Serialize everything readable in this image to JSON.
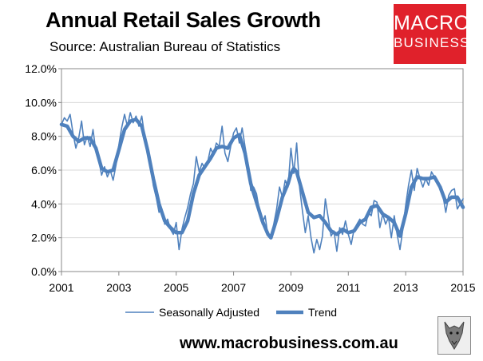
{
  "header": {
    "title": "Annual Retail Sales Growth",
    "source": "Source: Australian Bureau of Statistics"
  },
  "logo": {
    "line1": "MACRO",
    "line2": "BUSINESS",
    "color": "#e0212b"
  },
  "footer": {
    "website": "www.macrobusiness.com.au"
  },
  "chart_data": {
    "type": "line",
    "title": "Annual Retail Sales Growth",
    "xlabel": "",
    "ylabel": "",
    "xlim": [
      2001,
      2015
    ],
    "ylim": [
      0,
      12
    ],
    "x_ticks": [
      "2001",
      "2003",
      "2005",
      "2007",
      "2009",
      "2011",
      "2013",
      "2015"
    ],
    "y_ticks": [
      "0.0%",
      "2.0%",
      "4.0%",
      "6.0%",
      "8.0%",
      "10.0%",
      "12.0%"
    ],
    "grid": true,
    "legend_position": "bottom",
    "colors": {
      "series": "#4f81bd",
      "frame": "#888888"
    },
    "series": [
      {
        "name": "Seasonally Adjusted",
        "style": "thin",
        "points": [
          [
            2001.0,
            8.7
          ],
          [
            2001.1,
            9.1
          ],
          [
            2001.2,
            8.9
          ],
          [
            2001.3,
            9.3
          ],
          [
            2001.4,
            8.2
          ],
          [
            2001.5,
            7.3
          ],
          [
            2001.6,
            7.9
          ],
          [
            2001.7,
            8.9
          ],
          [
            2001.8,
            7.5
          ],
          [
            2001.9,
            8.0
          ],
          [
            2002.0,
            7.4
          ],
          [
            2002.1,
            8.4
          ],
          [
            2002.2,
            7.1
          ],
          [
            2002.3,
            6.6
          ],
          [
            2002.4,
            5.7
          ],
          [
            2002.5,
            6.2
          ],
          [
            2002.6,
            5.6
          ],
          [
            2002.7,
            6.0
          ],
          [
            2002.8,
            5.4
          ],
          [
            2002.9,
            6.3
          ],
          [
            2003.0,
            7.5
          ],
          [
            2003.1,
            8.5
          ],
          [
            2003.2,
            9.3
          ],
          [
            2003.3,
            8.6
          ],
          [
            2003.4,
            9.4
          ],
          [
            2003.5,
            8.8
          ],
          [
            2003.6,
            9.2
          ],
          [
            2003.7,
            8.6
          ],
          [
            2003.8,
            9.2
          ],
          [
            2003.9,
            8.0
          ],
          [
            2004.0,
            7.2
          ],
          [
            2004.1,
            6.5
          ],
          [
            2004.2,
            5.1
          ],
          [
            2004.3,
            4.4
          ],
          [
            2004.4,
            3.5
          ],
          [
            2004.5,
            3.7
          ],
          [
            2004.6,
            2.8
          ],
          [
            2004.7,
            3.1
          ],
          [
            2004.8,
            2.5
          ],
          [
            2004.9,
            2.2
          ],
          [
            2005.0,
            2.9
          ],
          [
            2005.1,
            1.3
          ],
          [
            2005.2,
            2.5
          ],
          [
            2005.3,
            3.2
          ],
          [
            2005.4,
            3.8
          ],
          [
            2005.5,
            4.6
          ],
          [
            2005.6,
            5.2
          ],
          [
            2005.7,
            6.8
          ],
          [
            2005.8,
            5.9
          ],
          [
            2005.9,
            6.4
          ],
          [
            2006.0,
            6.1
          ],
          [
            2006.1,
            6.5
          ],
          [
            2006.2,
            7.3
          ],
          [
            2006.3,
            6.9
          ],
          [
            2006.4,
            7.6
          ],
          [
            2006.5,
            7.4
          ],
          [
            2006.6,
            8.6
          ],
          [
            2006.7,
            7.0
          ],
          [
            2006.8,
            6.5
          ],
          [
            2006.9,
            7.4
          ],
          [
            2007.0,
            8.2
          ],
          [
            2007.1,
            8.5
          ],
          [
            2007.2,
            7.6
          ],
          [
            2007.3,
            8.5
          ],
          [
            2007.4,
            7.4
          ],
          [
            2007.5,
            6.4
          ],
          [
            2007.6,
            4.8
          ],
          [
            2007.7,
            5.0
          ],
          [
            2007.8,
            4.6
          ],
          [
            2007.9,
            3.6
          ],
          [
            2008.0,
            2.8
          ],
          [
            2008.1,
            3.3
          ],
          [
            2008.2,
            2.1
          ],
          [
            2008.3,
            2.0
          ],
          [
            2008.4,
            2.8
          ],
          [
            2008.5,
            3.7
          ],
          [
            2008.6,
            5.0
          ],
          [
            2008.7,
            4.4
          ],
          [
            2008.8,
            5.4
          ],
          [
            2008.9,
            5.0
          ],
          [
            2009.0,
            7.3
          ],
          [
            2009.1,
            5.8
          ],
          [
            2009.2,
            7.6
          ],
          [
            2009.3,
            5.0
          ],
          [
            2009.4,
            3.6
          ],
          [
            2009.5,
            2.3
          ],
          [
            2009.6,
            3.3
          ],
          [
            2009.7,
            2.0
          ],
          [
            2009.8,
            1.1
          ],
          [
            2009.9,
            1.9
          ],
          [
            2010.0,
            1.3
          ],
          [
            2010.1,
            2.1
          ],
          [
            2010.2,
            4.3
          ],
          [
            2010.3,
            3.2
          ],
          [
            2010.4,
            2.1
          ],
          [
            2010.5,
            2.4
          ],
          [
            2010.6,
            1.2
          ],
          [
            2010.7,
            2.6
          ],
          [
            2010.8,
            2.2
          ],
          [
            2010.9,
            3.0
          ],
          [
            2011.0,
            2.2
          ],
          [
            2011.1,
            1.6
          ],
          [
            2011.2,
            2.5
          ],
          [
            2011.3,
            2.8
          ],
          [
            2011.4,
            3.1
          ],
          [
            2011.5,
            2.8
          ],
          [
            2011.6,
            2.7
          ],
          [
            2011.7,
            3.5
          ],
          [
            2011.8,
            3.3
          ],
          [
            2011.9,
            4.2
          ],
          [
            2012.0,
            4.1
          ],
          [
            2012.1,
            2.6
          ],
          [
            2012.2,
            3.4
          ],
          [
            2012.3,
            2.8
          ],
          [
            2012.4,
            3.2
          ],
          [
            2012.5,
            2.0
          ],
          [
            2012.6,
            3.3
          ],
          [
            2012.7,
            2.2
          ],
          [
            2012.8,
            1.3
          ],
          [
            2012.9,
            2.5
          ],
          [
            2013.0,
            3.9
          ],
          [
            2013.1,
            5.1
          ],
          [
            2013.2,
            6.0
          ],
          [
            2013.3,
            4.8
          ],
          [
            2013.4,
            6.1
          ],
          [
            2013.5,
            5.5
          ],
          [
            2013.6,
            5.0
          ],
          [
            2013.7,
            5.5
          ],
          [
            2013.8,
            5.1
          ],
          [
            2013.9,
            5.9
          ],
          [
            2014.0,
            5.6
          ],
          [
            2014.1,
            5.2
          ],
          [
            2014.2,
            5.1
          ],
          [
            2014.3,
            4.5
          ],
          [
            2014.4,
            3.5
          ],
          [
            2014.5,
            4.5
          ],
          [
            2014.6,
            4.8
          ],
          [
            2014.7,
            4.9
          ],
          [
            2014.8,
            3.7
          ],
          [
            2014.9,
            4.0
          ],
          [
            2015.0,
            4.3
          ]
        ]
      },
      {
        "name": "Trend",
        "style": "thick",
        "points": [
          [
            2001.0,
            8.7
          ],
          [
            2001.2,
            8.6
          ],
          [
            2001.4,
            8.0
          ],
          [
            2001.6,
            7.7
          ],
          [
            2001.8,
            7.9
          ],
          [
            2002.0,
            7.9
          ],
          [
            2002.2,
            7.3
          ],
          [
            2002.4,
            6.1
          ],
          [
            2002.6,
            5.9
          ],
          [
            2002.8,
            6.0
          ],
          [
            2003.0,
            7.2
          ],
          [
            2003.2,
            8.4
          ],
          [
            2003.4,
            8.9
          ],
          [
            2003.6,
            9.0
          ],
          [
            2003.8,
            8.6
          ],
          [
            2004.0,
            7.2
          ],
          [
            2004.2,
            5.5
          ],
          [
            2004.4,
            4.0
          ],
          [
            2004.6,
            3.0
          ],
          [
            2004.8,
            2.6
          ],
          [
            2005.0,
            2.3
          ],
          [
            2005.2,
            2.3
          ],
          [
            2005.4,
            3.0
          ],
          [
            2005.6,
            4.6
          ],
          [
            2005.8,
            5.7
          ],
          [
            2006.0,
            6.2
          ],
          [
            2006.2,
            6.7
          ],
          [
            2006.4,
            7.3
          ],
          [
            2006.6,
            7.4
          ],
          [
            2006.8,
            7.3
          ],
          [
            2007.0,
            7.9
          ],
          [
            2007.2,
            8.1
          ],
          [
            2007.4,
            7.0
          ],
          [
            2007.6,
            5.2
          ],
          [
            2007.8,
            4.1
          ],
          [
            2008.0,
            3.0
          ],
          [
            2008.2,
            2.2
          ],
          [
            2008.3,
            2.0
          ],
          [
            2008.5,
            3.1
          ],
          [
            2008.7,
            4.4
          ],
          [
            2008.9,
            5.2
          ],
          [
            2009.0,
            5.8
          ],
          [
            2009.1,
            6.1
          ],
          [
            2009.2,
            5.9
          ],
          [
            2009.4,
            4.7
          ],
          [
            2009.6,
            3.5
          ],
          [
            2009.8,
            3.2
          ],
          [
            2010.0,
            3.3
          ],
          [
            2010.2,
            2.9
          ],
          [
            2010.4,
            2.4
          ],
          [
            2010.6,
            2.2
          ],
          [
            2010.8,
            2.5
          ],
          [
            2011.0,
            2.3
          ],
          [
            2011.2,
            2.4
          ],
          [
            2011.4,
            2.9
          ],
          [
            2011.6,
            3.1
          ],
          [
            2011.8,
            3.8
          ],
          [
            2012.0,
            3.9
          ],
          [
            2012.2,
            3.4
          ],
          [
            2012.4,
            3.2
          ],
          [
            2012.6,
            2.9
          ],
          [
            2012.8,
            2.1
          ],
          [
            2013.0,
            3.4
          ],
          [
            2013.2,
            5.0
          ],
          [
            2013.4,
            5.6
          ],
          [
            2013.6,
            5.5
          ],
          [
            2013.8,
            5.5
          ],
          [
            2014.0,
            5.6
          ],
          [
            2014.2,
            5.0
          ],
          [
            2014.4,
            4.1
          ],
          [
            2014.6,
            4.4
          ],
          [
            2014.8,
            4.4
          ],
          [
            2015.0,
            3.8
          ]
        ]
      }
    ]
  }
}
